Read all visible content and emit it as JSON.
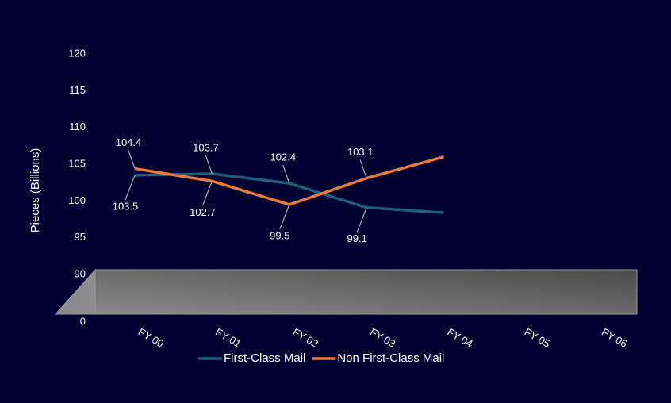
{
  "chart_data": {
    "type": "line",
    "y_label": "Pieces (Billions)",
    "categories": [
      "FY 00",
      "FY 01",
      "FY 02",
      "FY 03",
      "FY 04",
      "FY 05",
      "FY 06"
    ],
    "series": [
      {
        "name": "First-Class Mail",
        "color": "#1e5f7c",
        "values": [
          103.5,
          103.7,
          102.4,
          99.1,
          98.4,
          null,
          null
        ],
        "value_labels": [
          "103.5",
          "103.7",
          "102.4",
          "99.1",
          null,
          null,
          null
        ]
      },
      {
        "name": "Non First-Class Mail",
        "color": "#ec7a3c",
        "values": [
          104.4,
          102.7,
          99.5,
          103.1,
          106.0,
          null,
          null
        ],
        "value_labels": [
          "104.4",
          "102.7",
          "99.5",
          "103.1",
          null,
          null,
          null
        ]
      }
    ],
    "ylim": [
      90,
      120
    ],
    "yticks": [
      0,
      90,
      95,
      100,
      105,
      110,
      115,
      120
    ],
    "axis_break": true,
    "legend": "bottom",
    "grid": false
  }
}
